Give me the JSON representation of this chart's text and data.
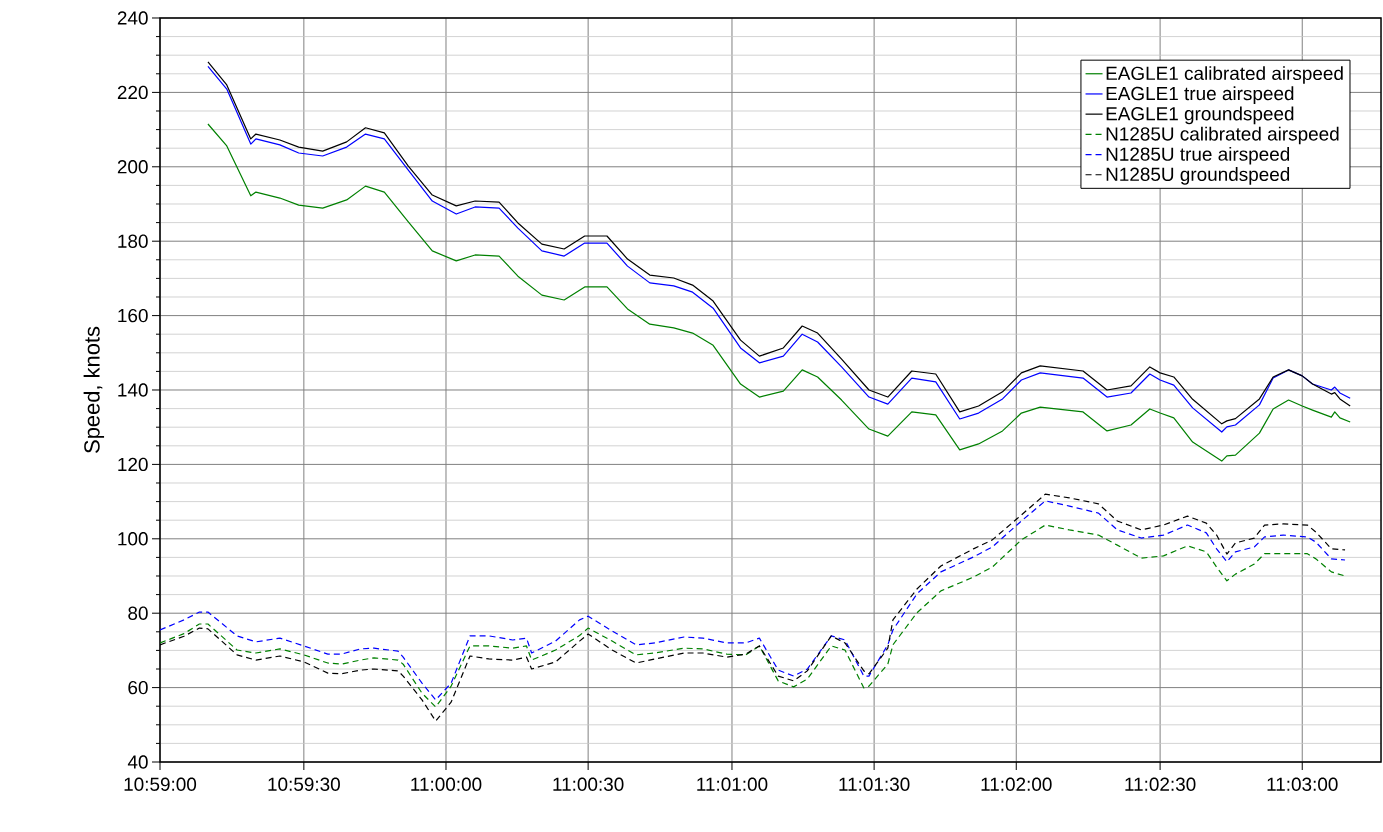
{
  "chart_data": {
    "type": "line",
    "ylabel": "Speed, knots",
    "xlim": [
      10.9833,
      11.0546
    ],
    "ylim": [
      40,
      240
    ],
    "xticks": [
      {
        "value": 10.9833,
        "label": "10:59:00"
      },
      {
        "value": 10.9917,
        "label": "10:59:30"
      },
      {
        "value": 11.0,
        "label": "11:00:00"
      },
      {
        "value": 11.0083,
        "label": "11:00:30"
      },
      {
        "value": 11.0167,
        "label": "11:01:00"
      },
      {
        "value": 11.025,
        "label": "11:01:30"
      },
      {
        "value": 11.0333,
        "label": "11:02:00"
      },
      {
        "value": 11.0417,
        "label": "11:02:30"
      },
      {
        "value": 11.05,
        "label": "11:03:00"
      }
    ],
    "yticks": [
      40,
      60,
      80,
      100,
      120,
      140,
      160,
      180,
      200,
      220,
      240
    ],
    "grid": true,
    "legend": "top right",
    "marker": "none",
    "x": [
      10.9861,
      10.9872,
      10.9886,
      10.9889,
      10.9903,
      10.9914,
      10.9928,
      10.9942,
      10.9953,
      10.9964,
      10.9978,
      10.9992,
      11.0006,
      11.0017,
      11.0031,
      11.0042,
      11.0056,
      11.0069,
      11.0081,
      11.0094,
      11.0106,
      11.0119,
      11.0133,
      11.0144,
      11.0156,
      11.0172,
      11.0183,
      11.0197,
      11.0208,
      11.0217,
      11.0231,
      11.0247,
      11.0258,
      11.0272,
      11.0286,
      11.03,
      11.0311,
      11.0325,
      11.0336,
      11.0347,
      11.0372,
      11.0386,
      11.04,
      11.0411,
      11.0417,
      11.0425,
      11.0436,
      11.0453,
      11.0456,
      11.0461,
      11.0475,
      11.0483,
      11.0492,
      11.05,
      11.0506,
      11.0517,
      11.0519,
      11.0522,
      11.0528
    ],
    "series": [
      {
        "name": "EAGLE1 calibrated airspeed",
        "color": "#008000",
        "line_style": "solid",
        "values": [
          211.5,
          205.6,
          192.2,
          193.2,
          191.6,
          189.7,
          188.9,
          191.1,
          194.8,
          193.2,
          185.2,
          177.4,
          174.7,
          176.3,
          176,
          170.6,
          165.5,
          164.2,
          167.7,
          167.7,
          161.8,
          157.7,
          156.7,
          155.3,
          152,
          141.6,
          138.1,
          139.7,
          145.4,
          143.5,
          137.3,
          129.5,
          127.6,
          134.1,
          133.3,
          123.9,
          125.5,
          129,
          133.8,
          135.4,
          134.1,
          129,
          130.6,
          134.9,
          133.8,
          132.5,
          126,
          120.9,
          122.3,
          122.5,
          128.4,
          134.9,
          137.3,
          135.7,
          134.6,
          132.7,
          134.1,
          132.5,
          131.4
        ]
      },
      {
        "name": "EAGLE1 true airspeed",
        "color": "#0000ff",
        "line_style": "solid",
        "values": [
          227,
          220.9,
          206.1,
          207.5,
          205.9,
          203.7,
          202.9,
          205.3,
          208.8,
          207.5,
          199.1,
          190.8,
          187.3,
          189.2,
          188.9,
          183.5,
          177.4,
          176,
          179.5,
          179.5,
          173.3,
          168.8,
          168,
          166.3,
          162,
          151.3,
          147.3,
          149.1,
          155,
          152.9,
          146.2,
          138.1,
          136.2,
          143.2,
          142.2,
          132.2,
          133.8,
          137.6,
          142.7,
          144.6,
          143.2,
          138.1,
          139.2,
          144.3,
          142.7,
          141.3,
          135.2,
          128.7,
          130.1,
          130.6,
          136,
          143.2,
          145.4,
          143.8,
          141.6,
          140,
          140.8,
          139.2,
          137.8
        ]
      },
      {
        "name": "EAGLE1 groundspeed",
        "color": "#000000",
        "line_style": "solid",
        "values": [
          228.2,
          222,
          207.5,
          208.8,
          207.2,
          205.3,
          204.2,
          206.7,
          210.5,
          209.1,
          200.2,
          192.4,
          189.5,
          190.8,
          190.5,
          184.9,
          179.2,
          177.9,
          181.4,
          181.4,
          175.2,
          170.9,
          170.1,
          168.2,
          163.9,
          153.4,
          149.1,
          151.3,
          157.2,
          155.3,
          148.3,
          140,
          138.1,
          145.1,
          144.3,
          134.1,
          135.7,
          139.5,
          144.6,
          146.5,
          145.1,
          140,
          141.1,
          146.2,
          144.6,
          143.5,
          137.5,
          130.9,
          131.7,
          132.3,
          137.6,
          143.5,
          145.4,
          143.8,
          141.6,
          138.9,
          139.3,
          137.6,
          135.7
        ]
      },
      {
        "name": "N1285U calibrated airspeed",
        "color": "#008000",
        "line_style": "dashed",
        "x": [
          10.9833,
          10.9847,
          10.9856,
          10.9861,
          10.9878,
          10.9889,
          10.9903,
          10.9917,
          10.9931,
          10.9939,
          10.995,
          10.9958,
          10.9972,
          10.9975,
          10.9986,
          10.9994,
          11.0003,
          11.0014,
          11.0025,
          11.0039,
          11.0047,
          11.005,
          11.0064,
          11.0078,
          11.0083,
          11.0097,
          11.0111,
          11.0122,
          11.0139,
          11.015,
          11.0164,
          11.0175,
          11.0183,
          11.0194,
          11.0203,
          11.0211,
          11.0225,
          11.0233,
          11.0244,
          11.0247,
          11.0258,
          11.0261,
          11.0275,
          11.0289,
          11.0308,
          11.0319,
          11.0336,
          11.035,
          11.0364,
          11.0381,
          11.0392,
          11.0406,
          11.0419,
          11.0433,
          11.0444,
          11.045,
          11.0456,
          11.0461,
          11.0472,
          11.0478,
          11.0489,
          11.0503,
          11.0508,
          11.0517,
          11.0525
        ],
        "values": [
          72,
          74.5,
          77.1,
          77.1,
          70.1,
          69.3,
          70.4,
          68.8,
          66.6,
          66.3,
          67.4,
          68,
          67.4,
          66.3,
          58.5,
          54.8,
          60.4,
          71.2,
          71.2,
          70.6,
          71.2,
          67.4,
          70.1,
          74,
          76,
          72.5,
          68.8,
          69.3,
          70.6,
          70.4,
          69,
          68.8,
          71.2,
          61.8,
          60.2,
          62.3,
          71.2,
          70.1,
          59.9,
          60.4,
          66.3,
          71.5,
          80.1,
          86,
          89.7,
          92.4,
          99.7,
          103.7,
          102.4,
          101,
          98.3,
          94.8,
          95.4,
          98.1,
          96.5,
          92.4,
          88.7,
          90.5,
          93.2,
          96,
          96,
          96,
          94.6,
          91.1,
          90
        ]
      },
      {
        "name": "N1285U true airspeed",
        "color": "#0000ff",
        "line_style": "dashed",
        "x": [
          10.9833,
          10.9847,
          10.9856,
          10.9861,
          10.9878,
          10.9889,
          10.9903,
          10.9917,
          10.9931,
          10.9939,
          10.995,
          10.9958,
          10.9972,
          10.9975,
          10.9986,
          10.9994,
          11.0003,
          11.0014,
          11.0025,
          11.0039,
          11.0047,
          11.005,
          11.0064,
          11.0078,
          11.0083,
          11.0097,
          11.0111,
          11.0122,
          11.0139,
          11.015,
          11.0164,
          11.0175,
          11.0183,
          11.0194,
          11.0203,
          11.0211,
          11.0225,
          11.0233,
          11.0244,
          11.0247,
          11.0258,
          11.0261,
          11.0275,
          11.0289,
          11.0308,
          11.0319,
          11.0336,
          11.035,
          11.0364,
          11.0381,
          11.0392,
          11.0406,
          11.0419,
          11.0433,
          11.0444,
          11.045,
          11.0456,
          11.0461,
          11.0472,
          11.0478,
          11.0489,
          11.0503,
          11.0508,
          11.0517,
          11.0525
        ],
        "values": [
          75.5,
          78.2,
          80.3,
          80.3,
          73.9,
          72.3,
          73.3,
          71.2,
          69,
          69,
          70.4,
          70.6,
          69.8,
          68.2,
          61.2,
          56.7,
          61.2,
          73.9,
          73.9,
          72.8,
          73.3,
          69.3,
          72.5,
          78.2,
          79.2,
          75.2,
          71.5,
          72,
          73.6,
          73.3,
          72,
          72,
          73.3,
          64.7,
          63.1,
          65,
          73.9,
          72.8,
          63.1,
          63.1,
          71.5,
          75.5,
          85.2,
          91.1,
          95.1,
          97.8,
          104.8,
          110.2,
          108.8,
          106.9,
          102.4,
          100.2,
          101,
          103.7,
          101.6,
          97.3,
          93.8,
          96.5,
          97.8,
          100.5,
          101,
          100.5,
          99.1,
          94.6,
          94.3
        ]
      },
      {
        "name": "N1285U groundspeed",
        "color": "#000000",
        "line_style": "dashed",
        "x": [
          10.9833,
          10.9847,
          10.9856,
          10.9861,
          10.9878,
          10.9889,
          10.9903,
          10.9917,
          10.9931,
          10.9939,
          10.995,
          10.9958,
          10.9972,
          10.9975,
          10.9986,
          10.9994,
          11.0003,
          11.0014,
          11.0025,
          11.0039,
          11.0047,
          11.005,
          11.0064,
          11.0078,
          11.0083,
          11.0097,
          11.0111,
          11.0122,
          11.0139,
          11.015,
          11.0164,
          11.0175,
          11.0183,
          11.0194,
          11.0203,
          11.0211,
          11.0225,
          11.0233,
          11.0244,
          11.0247,
          11.0258,
          11.0261,
          11.0275,
          11.0289,
          11.0308,
          11.0319,
          11.0336,
          11.035,
          11.0364,
          11.0381,
          11.0392,
          11.0406,
          11.0419,
          11.0433,
          11.0444,
          11.045,
          11.0456,
          11.0461,
          11.0472,
          11.0478,
          11.0489,
          11.0503,
          11.0508,
          11.0517,
          11.0525
        ],
        "values": [
          71.5,
          73.8,
          76,
          75.8,
          68.8,
          67.4,
          68.5,
          66.9,
          63.9,
          63.7,
          64.7,
          65,
          64.5,
          63.1,
          56.7,
          51,
          56.1,
          68.5,
          67.7,
          67.4,
          68.2,
          65,
          66.9,
          72.5,
          74.4,
          70.1,
          66.6,
          67.7,
          69.3,
          69.3,
          68.2,
          69,
          71.2,
          63.1,
          61.8,
          64.5,
          73.9,
          72,
          64.5,
          63.7,
          70.6,
          78.2,
          86.5,
          92.7,
          97.3,
          99.7,
          106.4,
          112,
          111,
          109.4,
          104.8,
          102.4,
          103.7,
          106.1,
          104.2,
          101,
          95.9,
          98.9,
          100.2,
          103.7,
          104,
          103.7,
          101.8,
          97.3,
          97
        ]
      }
    ]
  }
}
